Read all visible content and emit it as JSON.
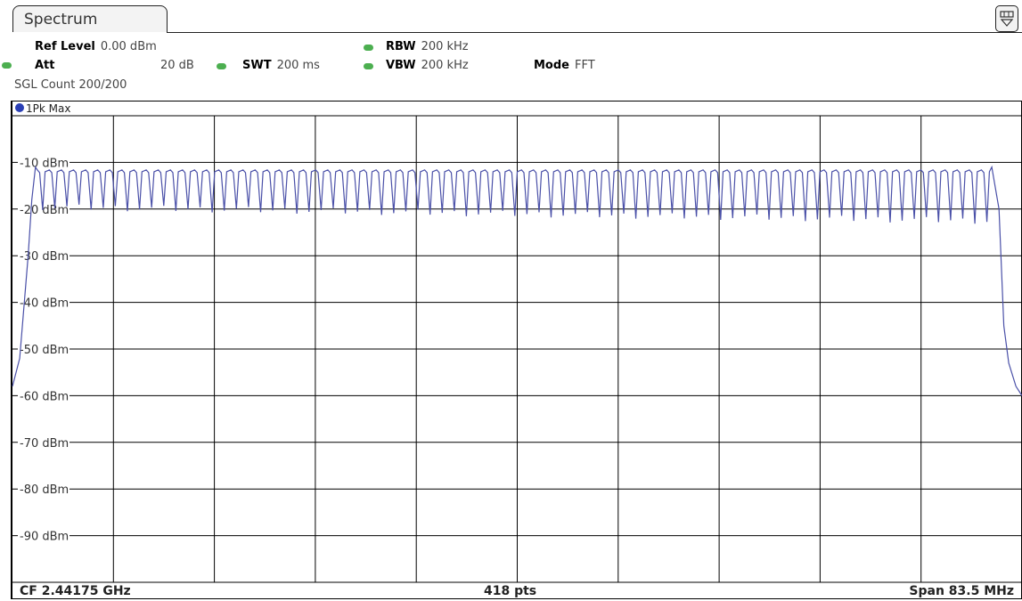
{
  "window": {
    "tab_label": "Spectrum",
    "menu_icon": "softkey-menu-icon"
  },
  "settings": {
    "ref_level": {
      "label": "Ref Level",
      "value": "0.00 dBm"
    },
    "att": {
      "label": "Att",
      "value": "20 dB"
    },
    "swt": {
      "label": "SWT",
      "value": "200 ms"
    },
    "rbw": {
      "label": "RBW",
      "value": "200 kHz"
    },
    "vbw": {
      "label": "VBW",
      "value": "200 kHz"
    },
    "mode": {
      "label": "Mode",
      "value": "FFT"
    },
    "sgl_count": "SGL Count 200/200",
    "indicator_color": "#4caf50"
  },
  "trace": {
    "label": "1Pk Max",
    "color": "#4a50a8",
    "marker_color": "#2a3fb5"
  },
  "footer": {
    "center_freq": "CF 2.44175 GHz",
    "points": "418 pts",
    "span": "Span 83.5 MHz"
  },
  "chart_data": {
    "type": "line",
    "title": "",
    "xlabel": "",
    "ylabel": "",
    "y_ticks": [
      "-10 dBm",
      "-20 dBm",
      "-30 dBm",
      "-40 dBm",
      "-50 dBm",
      "-60 dBm",
      "-70 dBm",
      "-80 dBm",
      "-90 dBm"
    ],
    "y_tick_values": [
      -10,
      -20,
      -30,
      -40,
      -50,
      -60,
      -70,
      -80,
      -90
    ],
    "ylim": [
      -100,
      0
    ],
    "xlim_mhz": [
      2400.0,
      2483.5
    ],
    "grid": true,
    "x_divisions": 10,
    "y_divisions": 10,
    "num_points": 418,
    "series": [
      {
        "peak_level_dbm": -11,
        "trough_level_dbm": -21,
        "num_channels": 79,
        "x_mhz": [
          2400.0,
          2400.6,
          2401.3,
          2401.6,
          2401.9,
          2481.0,
          2481.6,
          2482.0,
          2482.4,
          2483.0,
          2483.5
        ],
        "y_dbm": [
          -58,
          -52,
          -30,
          -18,
          -11,
          -11,
          -20,
          -45,
          -53,
          -58,
          -60
        ]
      }
    ]
  }
}
